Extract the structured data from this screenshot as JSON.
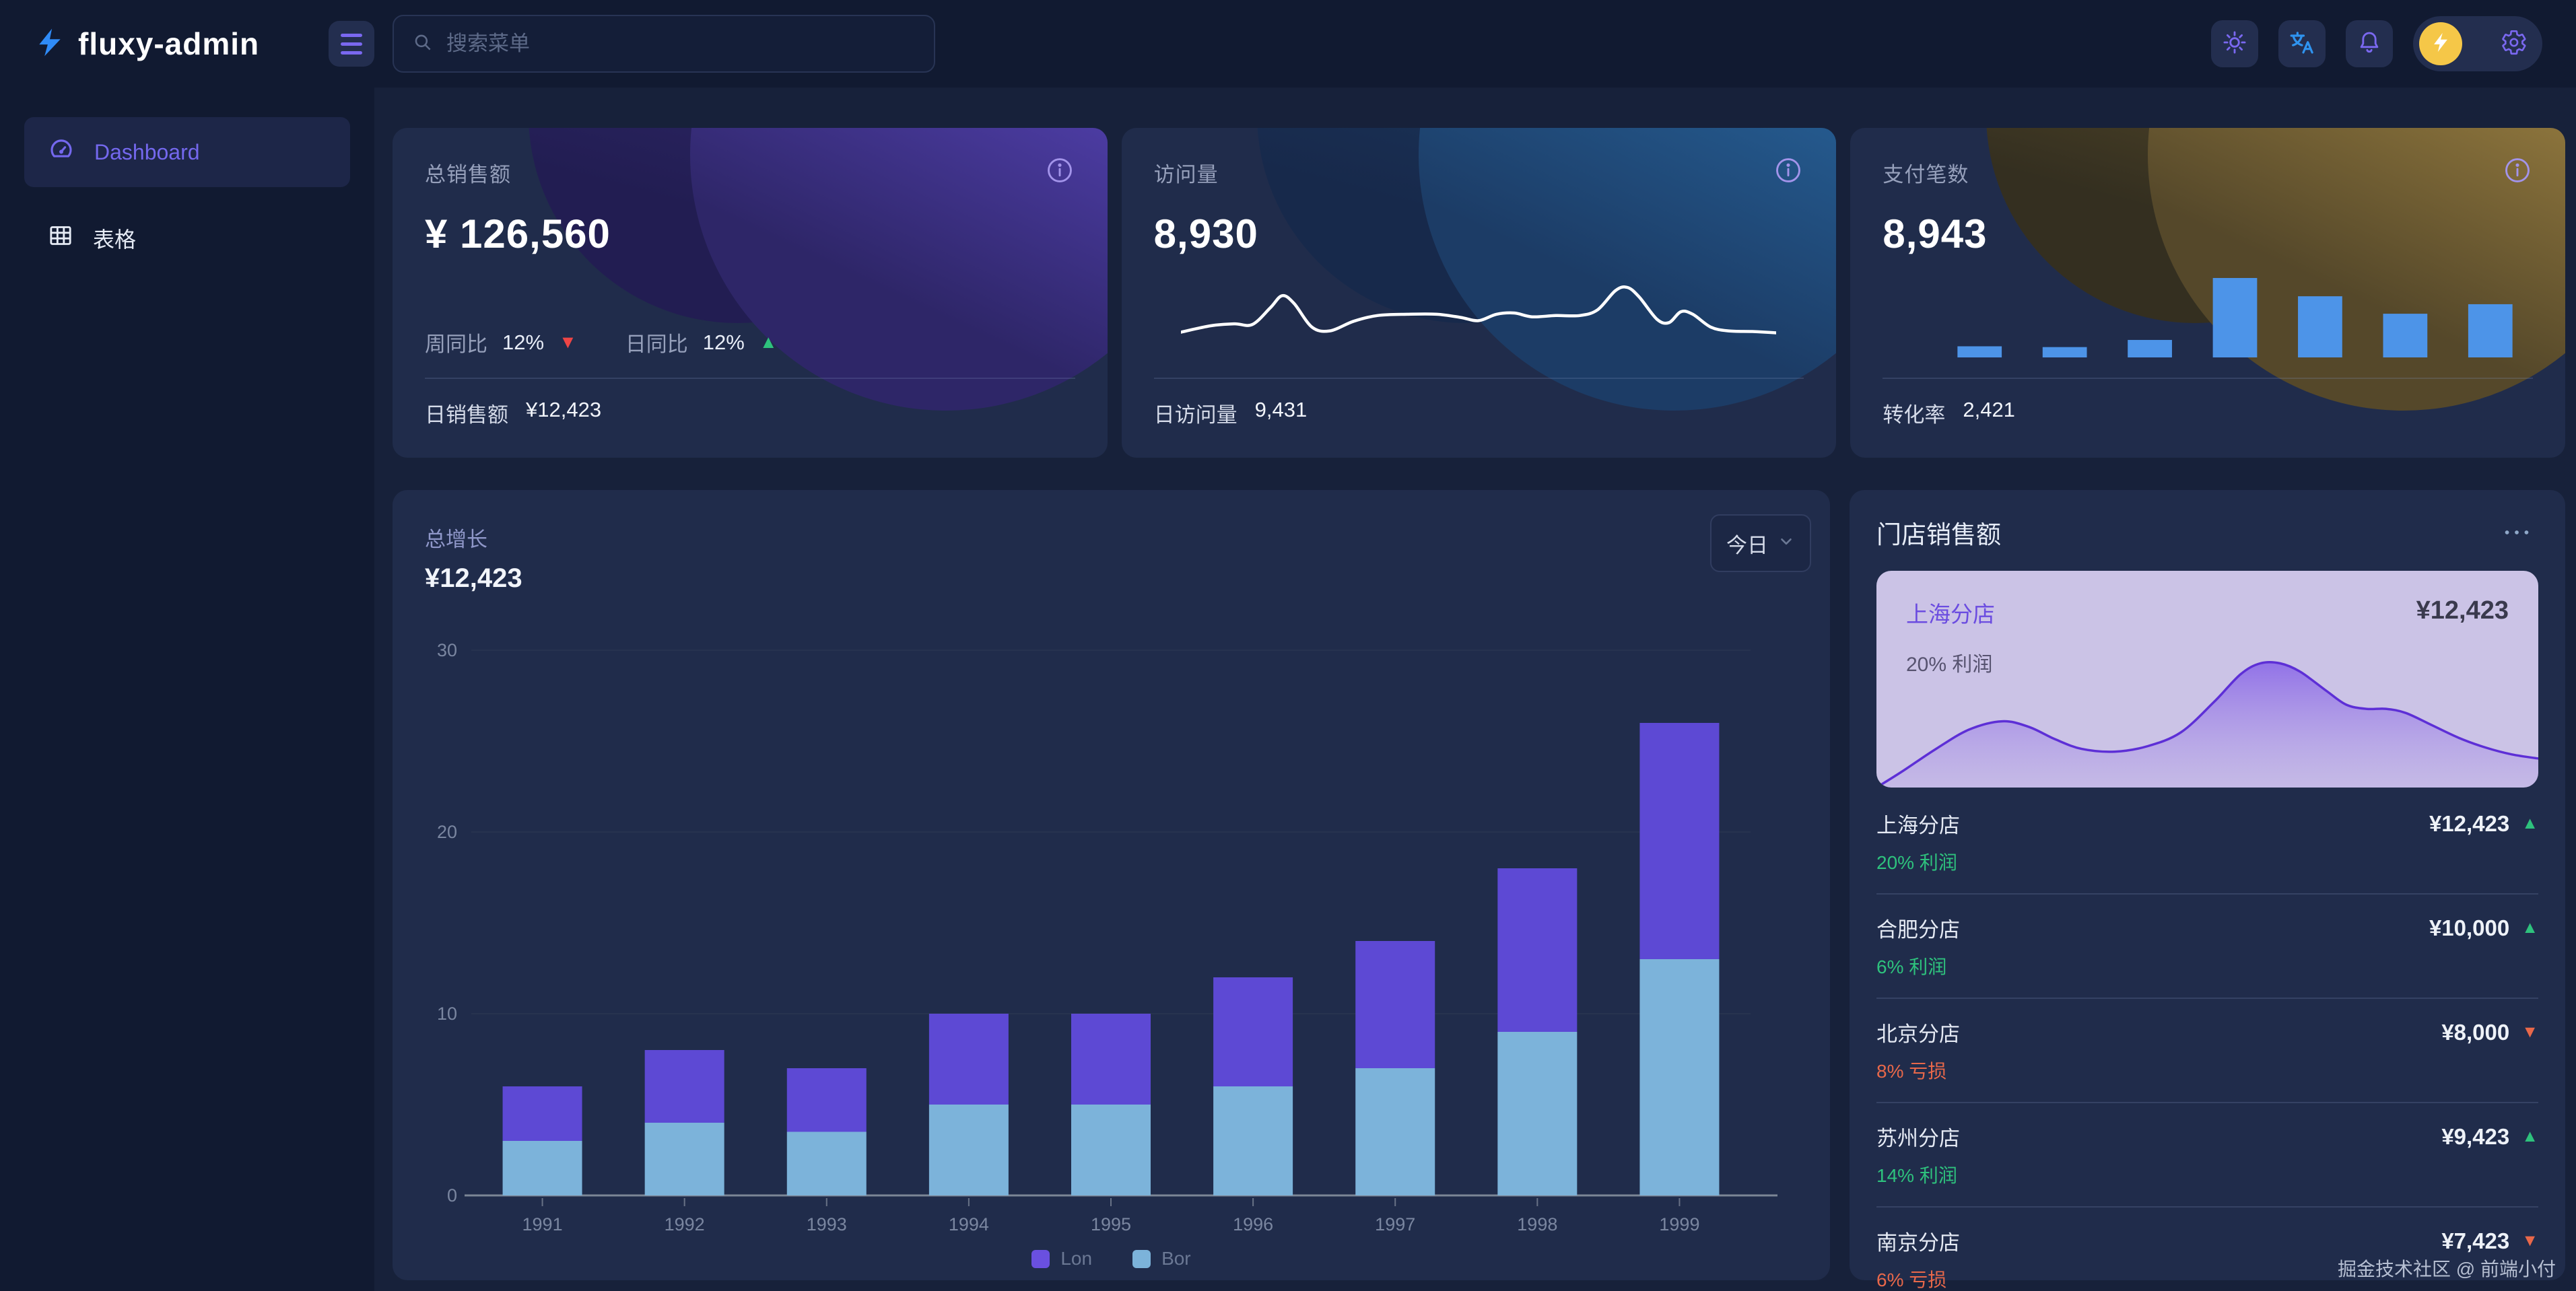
{
  "app": {
    "logo_text": "fluxy-admin",
    "logo_icon": "lightning-bolt-icon"
  },
  "topbar": {
    "search_placeholder": "搜索菜单"
  },
  "sidebar": {
    "items": [
      {
        "label": "Dashboard",
        "icon": "gauge-icon",
        "active": true
      },
      {
        "label": "表格",
        "icon": "table-icon",
        "active": false
      }
    ]
  },
  "stat_cards": [
    {
      "label": "总销售额",
      "value": "¥ 126,560",
      "accent": "purple",
      "metrics": [
        {
          "label": "周同比",
          "value": "12%",
          "trend": "down"
        },
        {
          "label": "日同比",
          "value": "12%",
          "trend": "up"
        }
      ],
      "footer_label": "日销售额",
      "footer_value": "¥12,423"
    },
    {
      "label": "访问量",
      "value": "8,930",
      "accent": "blue",
      "footer_label": "日访问量",
      "footer_value": "9,431"
    },
    {
      "label": "支付笔数",
      "value": "8,943",
      "accent": "gold",
      "footer_label": "转化率",
      "footer_value": "2,421"
    }
  ],
  "growth_card": {
    "title": "总增长",
    "value": "¥12,423",
    "range_selector_label": "今日"
  },
  "store_panel": {
    "title": "门店销售额",
    "featured": {
      "name": "上海分店",
      "value": "¥12,423",
      "sub": "20% 利润"
    },
    "stores": [
      {
        "name": "上海分店",
        "sub": "20% 利润",
        "sub_type": "profit",
        "value": "¥12,423",
        "trend": "up"
      },
      {
        "name": "合肥分店",
        "sub": "6% 利润",
        "sub_type": "profit",
        "value": "¥10,000",
        "trend": "up"
      },
      {
        "name": "北京分店",
        "sub": "8% 亏损",
        "sub_type": "loss",
        "value": "¥8,000",
        "trend": "down"
      },
      {
        "name": "苏州分店",
        "sub": "14% 利润",
        "sub_type": "profit",
        "value": "¥9,423",
        "trend": "up"
      },
      {
        "name": "南京分店",
        "sub": "6% 亏损",
        "sub_type": "loss",
        "value": "¥7,423",
        "trend": "down"
      }
    ]
  },
  "watermark": "掘金技术社区 @ 前端小付",
  "colors": {
    "up_green": "#2ec27d",
    "down_red": "#ee4545",
    "down_orange": "#e8684a",
    "bar_purple": "#5d49d4",
    "bar_blue": "#7cb3da",
    "mini_bar_blue": "#4d94e8",
    "avatar_yellow": "#f5c748",
    "logo_blue": "#2f8bf7",
    "accent_text_purple": "#8f97c9"
  },
  "chart_data": [
    {
      "type": "bar",
      "stacked": true,
      "title": "总增长",
      "categories": [
        "1991",
        "1992",
        "1993",
        "1994",
        "1995",
        "1996",
        "1997",
        "1998",
        "1999"
      ],
      "series": [
        {
          "name": "Lon",
          "color": "#5d49d4",
          "values": [
            3,
            4,
            3.5,
            5,
            5,
            6,
            7,
            9,
            13
          ]
        },
        {
          "name": "Bor",
          "color": "#7cb3da",
          "values": [
            3,
            4,
            3.5,
            5,
            5,
            6,
            7,
            9,
            13
          ]
        }
      ],
      "stack_order": [
        "Bor",
        "Lon"
      ],
      "ylim": [
        0,
        30
      ],
      "yticks": [
        0,
        10,
        20,
        30
      ],
      "grid": "horizontal",
      "legend_position": "bottom"
    },
    {
      "type": "line",
      "name": "visits_sparkline",
      "color": "#ffffff",
      "points_norm": [
        [
          0,
          90
        ],
        [
          5,
          80
        ],
        [
          9,
          77
        ],
        [
          12,
          78
        ],
        [
          15,
          52
        ],
        [
          17,
          33
        ],
        [
          19,
          45
        ],
        [
          22,
          82
        ],
        [
          25,
          88
        ],
        [
          29,
          73
        ],
        [
          33,
          64
        ],
        [
          38,
          62
        ],
        [
          43,
          62
        ],
        [
          47,
          67
        ],
        [
          50,
          72
        ],
        [
          53,
          62
        ],
        [
          56,
          60
        ],
        [
          59,
          66
        ],
        [
          63,
          64
        ],
        [
          67,
          64
        ],
        [
          70,
          55
        ],
        [
          73,
          25
        ],
        [
          75,
          20
        ],
        [
          77,
          35
        ],
        [
          80,
          70
        ],
        [
          82,
          75
        ],
        [
          84,
          58
        ],
        [
          86,
          62
        ],
        [
          89,
          82
        ],
        [
          92,
          88
        ],
        [
          96,
          89
        ],
        [
          100,
          91
        ]
      ]
    },
    {
      "type": "bar",
      "name": "payments_mini_bars",
      "color": "#4d94e8",
      "values": [
        14,
        13,
        22,
        100,
        77,
        55,
        67
      ]
    },
    {
      "type": "area",
      "name": "shanghai_store_area",
      "color": "#5d2fd6",
      "points_norm": [
        [
          0,
          100
        ],
        [
          4,
          88
        ],
        [
          9,
          72
        ],
        [
          14,
          58
        ],
        [
          19,
          52
        ],
        [
          23,
          56
        ],
        [
          27,
          65
        ],
        [
          31,
          72
        ],
        [
          36,
          74
        ],
        [
          41,
          70
        ],
        [
          46,
          60
        ],
        [
          51,
          38
        ],
        [
          55,
          18
        ],
        [
          58,
          10
        ],
        [
          61,
          10
        ],
        [
          64,
          16
        ],
        [
          68,
          30
        ],
        [
          71,
          40
        ],
        [
          74,
          43
        ],
        [
          77,
          43
        ],
        [
          80,
          46
        ],
        [
          84,
          55
        ],
        [
          88,
          64
        ],
        [
          92,
          71
        ],
        [
          96,
          76
        ],
        [
          100,
          79
        ]
      ]
    }
  ]
}
